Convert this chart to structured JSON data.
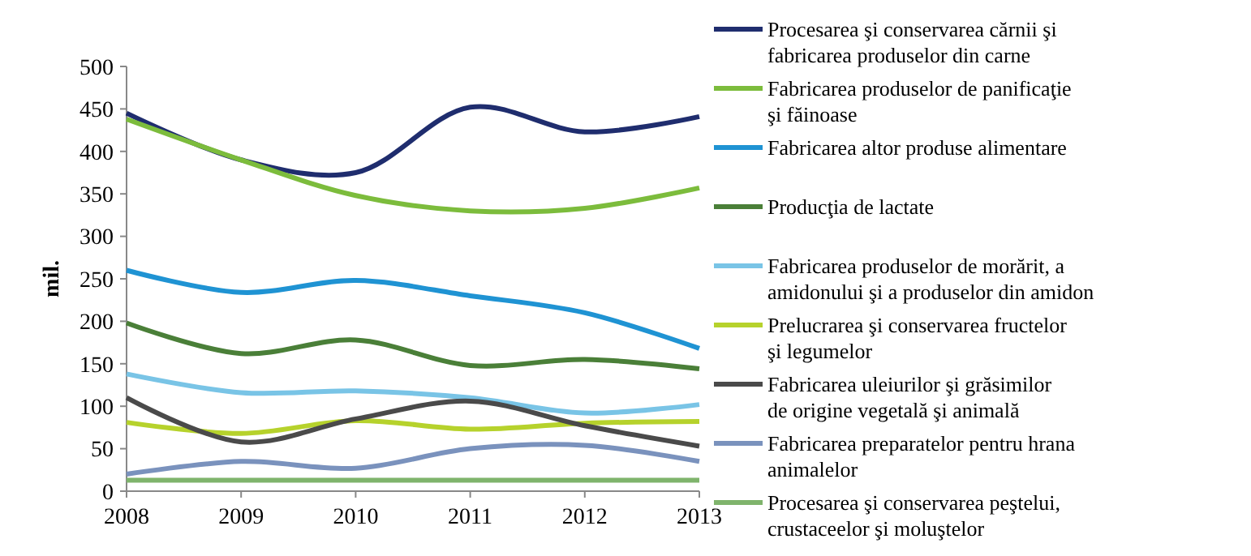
{
  "chart_data": {
    "type": "line",
    "ylabel": "mil.",
    "categories": [
      "2008",
      "2009",
      "2010",
      "2011",
      "2012",
      "2013"
    ],
    "ylim": [
      0,
      500
    ],
    "yticks": [
      0,
      50,
      100,
      150,
      200,
      250,
      300,
      350,
      400,
      450,
      500
    ],
    "grid": false,
    "legend": "right",
    "marker": "none",
    "line_style": "solid",
    "series": [
      {
        "name": "Procesarea şi conservarea cărnii şi fabricarea produselor din carne",
        "color": "#1f2d6e",
        "values": [
          445,
          390,
          375,
          452,
          423,
          441
        ]
      },
      {
        "name": "Fabricarea produselor de panificaţie şi făinoase",
        "color": "#7cbc3c",
        "values": [
          438,
          390,
          348,
          330,
          333,
          357
        ]
      },
      {
        "name": "Fabricarea altor produse alimentare",
        "color": "#1f93d3",
        "values": [
          260,
          234,
          248,
          230,
          210,
          168
        ]
      },
      {
        "name": "Producţia de lactate",
        "color": "#4a7f38",
        "values": [
          198,
          162,
          178,
          148,
          155,
          144
        ]
      },
      {
        "name": "Fabricarea produselor de morărit, a amidonului şi a produselor din amidon",
        "color": "#79c4e6",
        "values": [
          138,
          116,
          118,
          110,
          92,
          102
        ]
      },
      {
        "name": "Prelucrarea şi conservarea fructelor şi legumelor",
        "color": "#b6d22c",
        "values": [
          81,
          68,
          83,
          73,
          80,
          82
        ]
      },
      {
        "name": "Fabricarea uleiurilor şi grăsimilor de origine vegetală şi animală",
        "color": "#4a4a4a",
        "values": [
          110,
          58,
          85,
          106,
          77,
          53
        ]
      },
      {
        "name": "Fabricarea preparatelor pentru hrana animalelor",
        "color": "#7a92bd",
        "values": [
          20,
          35,
          27,
          50,
          54,
          35
        ]
      },
      {
        "name": "Procesarea şi conservarea peştelui, crustaceelor şi moluştelor",
        "color": "#7fb46c",
        "values": [
          13,
          13,
          13,
          13,
          13,
          13
        ]
      }
    ]
  }
}
